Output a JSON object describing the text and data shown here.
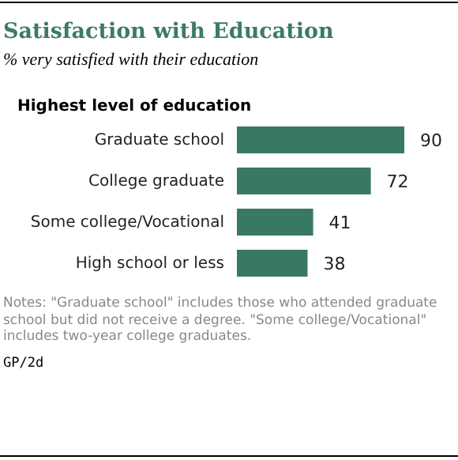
{
  "chart_data": {
    "type": "bar",
    "orientation": "horizontal",
    "title": "Satisfaction with Education",
    "subtitle": "% very satisfied with their education",
    "ylabel": "Highest level of education",
    "categories": [
      "Graduate school",
      "College graduate",
      "Some college/Vocational",
      "High school or less"
    ],
    "values": [
      90,
      72,
      41,
      38
    ],
    "color": "#3a7866",
    "data_labels": true,
    "grid": false,
    "legend": false,
    "annotations": [
      "Notes: \"Graduate school\" includes those who attended graduate school but did not receive a degree. \"Some college/Vocational\" includes two-year college graduates.",
      "GP/2d"
    ]
  }
}
